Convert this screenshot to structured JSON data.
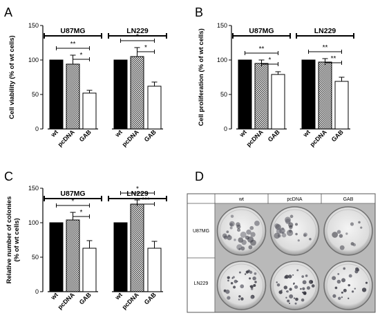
{
  "panel_labels": [
    "A",
    "B",
    "C",
    "D"
  ],
  "chart_data": [
    {
      "panel": "A",
      "type": "bar",
      "ylabel": "Cell viability (% of wt cells)",
      "ylim": [
        0,
        150
      ],
      "yticks": [
        0,
        50,
        100,
        150
      ],
      "groups": [
        {
          "name": "U87MG",
          "categories": [
            "wt",
            "pcDNA",
            "GAB"
          ],
          "values": [
            100,
            94,
            52
          ],
          "errors": [
            0,
            13,
            4
          ],
          "significance": [
            {
              "from": "wt",
              "to": "GAB",
              "label": "**"
            },
            {
              "from": "pcDNA",
              "to": "GAB",
              "label": "*"
            }
          ]
        },
        {
          "name": "LN229",
          "categories": [
            "wt",
            "pcDNA",
            "GAB"
          ],
          "values": [
            100,
            105,
            62
          ],
          "errors": [
            0,
            13,
            6
          ],
          "significance": [
            {
              "from": "wt",
              "to": "GAB",
              "label": "*"
            },
            {
              "from": "pcDNA",
              "to": "GAB",
              "label": "*"
            }
          ]
        }
      ]
    },
    {
      "panel": "B",
      "type": "bar",
      "ylabel": "Cell proliferation (% of wt cells)",
      "ylim": [
        0,
        150
      ],
      "yticks": [
        0,
        50,
        100,
        150
      ],
      "groups": [
        {
          "name": "U87MG",
          "categories": [
            "wt",
            "pcDNA",
            "GAB"
          ],
          "values": [
            100,
            95,
            79
          ],
          "errors": [
            0,
            5,
            4
          ],
          "significance": [
            {
              "from": "wt",
              "to": "GAB",
              "label": "**"
            },
            {
              "from": "pcDNA",
              "to": "GAB",
              "label": "*"
            }
          ]
        },
        {
          "name": "LN229",
          "categories": [
            "wt",
            "pcDNA",
            "GAB"
          ],
          "values": [
            100,
            97,
            69
          ],
          "errors": [
            0,
            5,
            6
          ],
          "significance": [
            {
              "from": "wt",
              "to": "GAB",
              "label": "**"
            },
            {
              "from": "pcDNA",
              "to": "GAB",
              "label": "**"
            }
          ]
        }
      ]
    },
    {
      "panel": "C",
      "type": "bar",
      "ylabel": "Relative number of colonies\n(% of wt cells)",
      "ylim": [
        0,
        150
      ],
      "yticks": [
        0,
        50,
        100,
        150
      ],
      "groups": [
        {
          "name": "U87MG",
          "categories": [
            "wt",
            "pcDNA",
            "GAB"
          ],
          "values": [
            100,
            104,
            63
          ],
          "errors": [
            0,
            11,
            11
          ],
          "significance": [
            {
              "from": "wt",
              "to": "GAB",
              "label": "*"
            },
            {
              "from": "pcDNA",
              "to": "GAB",
              "label": "*"
            }
          ]
        },
        {
          "name": "LN229",
          "categories": [
            "wt",
            "pcDNA",
            "GAB"
          ],
          "values": [
            100,
            127,
            63
          ],
          "errors": [
            0,
            6,
            10
          ],
          "significance": [
            {
              "from": "wt",
              "to": "GAB",
              "label": "*"
            },
            {
              "from": "pcDNA",
              "to": "GAB",
              "label": "***"
            }
          ]
        }
      ]
    }
  ],
  "photo_panel": {
    "columns": [
      "wt",
      "pcDNA",
      "GAB"
    ],
    "rows": [
      "U87MG",
      "LN229"
    ]
  }
}
